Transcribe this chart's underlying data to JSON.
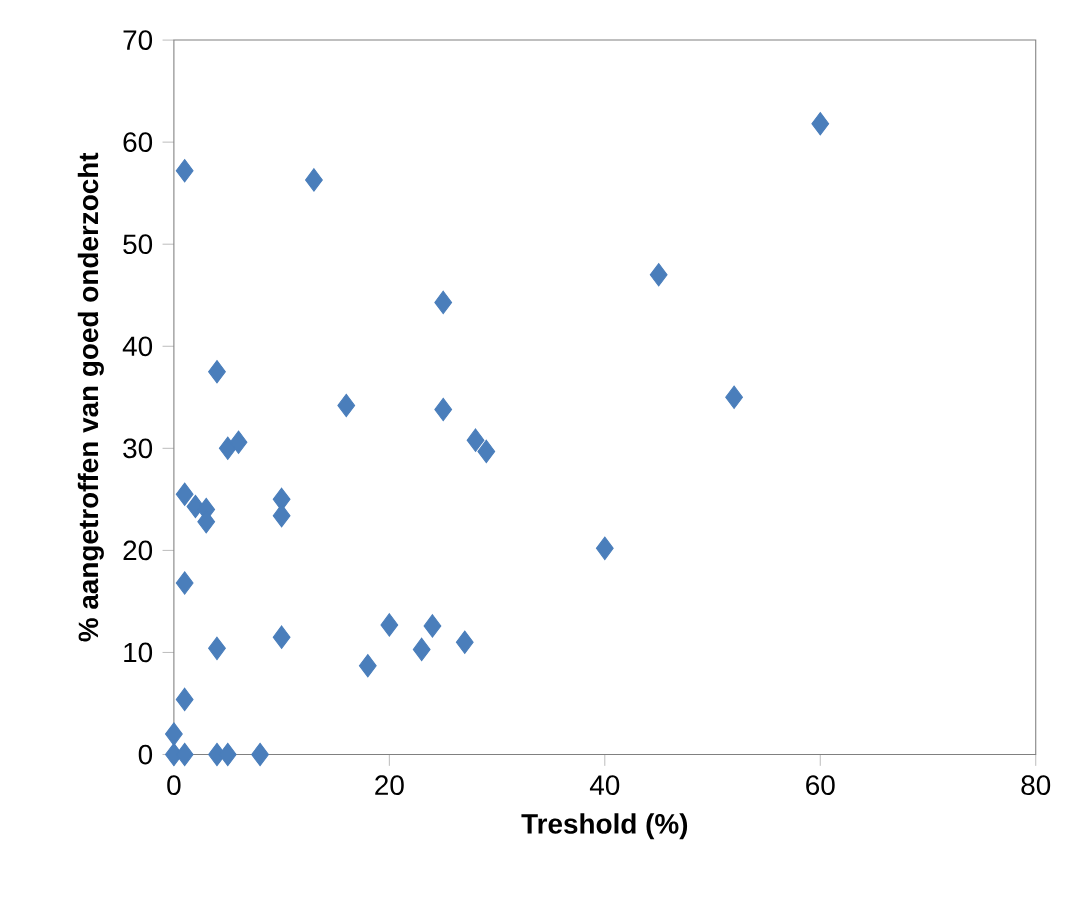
{
  "chart_data": {
    "type": "scatter",
    "xlabel": "Treshold (%)",
    "ylabel": "% aangetroffen van goed onderzocht",
    "x": [
      1,
      13,
      25,
      4,
      16,
      25,
      5,
      6,
      28,
      29,
      1,
      2,
      3,
      3,
      10,
      10,
      40,
      1,
      20,
      24,
      10,
      27,
      4,
      23,
      18,
      1,
      0,
      0,
      1,
      4,
      5,
      8,
      45,
      52,
      60
    ],
    "values": [
      57.2,
      56.3,
      44.3,
      37.5,
      34.2,
      33.8,
      30,
      30.6,
      30.8,
      29.7,
      25.5,
      24.3,
      24,
      22.8,
      25,
      23.4,
      20.2,
      16.8,
      12.7,
      12.6,
      11.5,
      11,
      10.4,
      10.3,
      8.7,
      5.4,
      2,
      0,
      0,
      0,
      0,
      0,
      47,
      35,
      61.8
    ],
    "color": "#4a7ebb",
    "marker": "diamond",
    "xlim": [
      0,
      80
    ],
    "xticks": [
      0,
      20,
      40,
      60,
      80
    ],
    "ylim": [
      0,
      70
    ],
    "yticks": [
      0,
      10,
      20,
      30,
      40,
      50,
      60,
      70
    ],
    "grid": false
  }
}
